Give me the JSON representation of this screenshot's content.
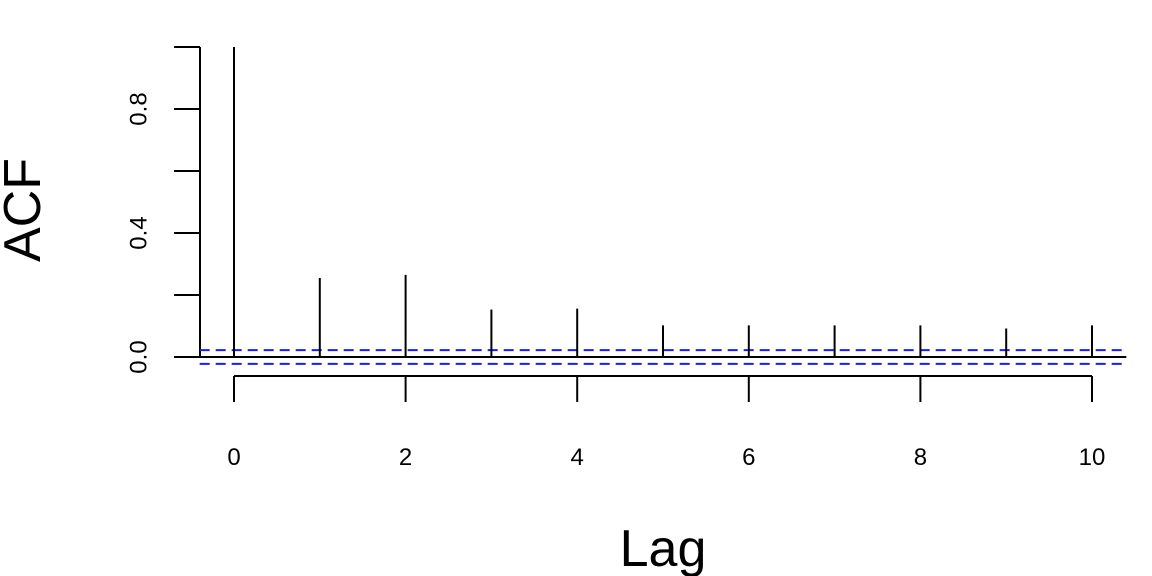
{
  "chart_data": {
    "type": "bar",
    "xlabel": "Lag",
    "ylabel": "ACF",
    "xlim": [
      -0.4,
      10.4
    ],
    "ylim": [
      -0.15,
      1.0
    ],
    "x_ticks": [
      "0",
      "2",
      "4",
      "6",
      "8",
      "10"
    ],
    "y_ticks_labeled": [
      "0.0",
      "0.4",
      "0.8"
    ],
    "y_ticks_all": [
      0.0,
      0.2,
      0.4,
      0.6,
      0.8,
      1.0
    ],
    "series": [
      {
        "lags": [
          0,
          1,
          2,
          3,
          4,
          5,
          6,
          7,
          8,
          9,
          10
        ],
        "values": [
          1.0,
          0.255,
          0.265,
          0.153,
          0.156,
          0.102,
          0.102,
          0.102,
          0.102,
          0.092,
          0.102
        ]
      }
    ],
    "confidence_band": [
      -0.022,
      0.022
    ],
    "ci_color": "#1a1aff",
    "spike_color": "#000000",
    "grid": false
  }
}
